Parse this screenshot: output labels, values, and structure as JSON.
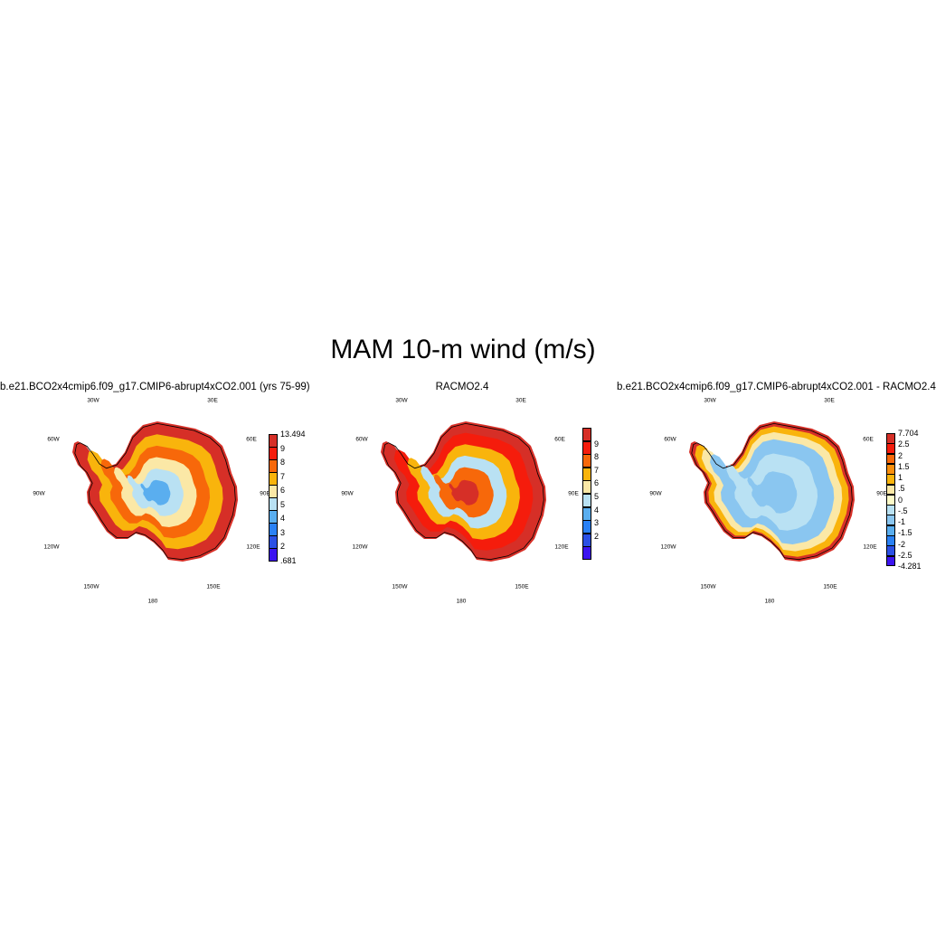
{
  "title": "MAM 10-m wind (m/s)",
  "panels": [
    {
      "title": "b.e21.BCO2x4cmip6.f09_g17.CMIP6-abrupt4xCO2.001 (yrs 75-99)",
      "lon_labels": [
        "30W",
        "30E",
        "60W",
        "60E",
        "90W",
        "90E",
        "120W",
        "120E",
        "150W",
        "150E",
        "180"
      ],
      "colorbar": {
        "labels": [
          "13.494",
          "9",
          "8",
          "7",
          "6",
          "5",
          "4",
          "3",
          "2",
          ".681"
        ],
        "colors": [
          "#d62f27",
          "#f51c0c",
          "#f7680a",
          "#f9b40c",
          "#fbe8a6",
          "#b9e1f3",
          "#5aaeef",
          "#2a81f5",
          "#2b50e5",
          "#3c14f0"
        ]
      },
      "field": "model"
    },
    {
      "title": "RACMO2.4",
      "lon_labels": [
        "30W",
        "30E",
        "60W",
        "60E",
        "90W",
        "90E",
        "120W",
        "120E",
        "150W",
        "150E",
        "180"
      ],
      "colorbar": {
        "labels": [
          "9",
          "8",
          "7",
          "6",
          "5",
          "4",
          "3",
          "2"
        ],
        "colors": [
          "#d62f27",
          "#f51c0c",
          "#f7680a",
          "#f9b40c",
          "#fbe8a6",
          "#b9e1f3",
          "#5aaeef",
          "#2a81f5",
          "#2b50e5",
          "#3c14f0"
        ]
      },
      "field": "obs"
    },
    {
      "title": "b.e21.BCO2x4cmip6.f09_g17.CMIP6-abrupt4xCO2.001 - RACMO2.4",
      "lon_labels": [
        "30W",
        "30E",
        "60W",
        "60E",
        "90W",
        "90E",
        "120W",
        "120E",
        "150W",
        "150E",
        "180"
      ],
      "colorbar": {
        "labels": [
          "7.704",
          "2.5",
          "2",
          "1.5",
          "1",
          ".5",
          "0",
          "-.5",
          "-1",
          "-1.5",
          "-2",
          "-2.5",
          "-4.281"
        ],
        "colors": [
          "#d62f27",
          "#f51c0c",
          "#f7680a",
          "#f98f0c",
          "#f9b40c",
          "#fbe8a6",
          "#fdfbc8",
          "#b9e1f3",
          "#8ac6f0",
          "#5aaeef",
          "#2a81f5",
          "#2b50e5",
          "#3c14f0"
        ]
      },
      "field": "diff"
    }
  ]
}
